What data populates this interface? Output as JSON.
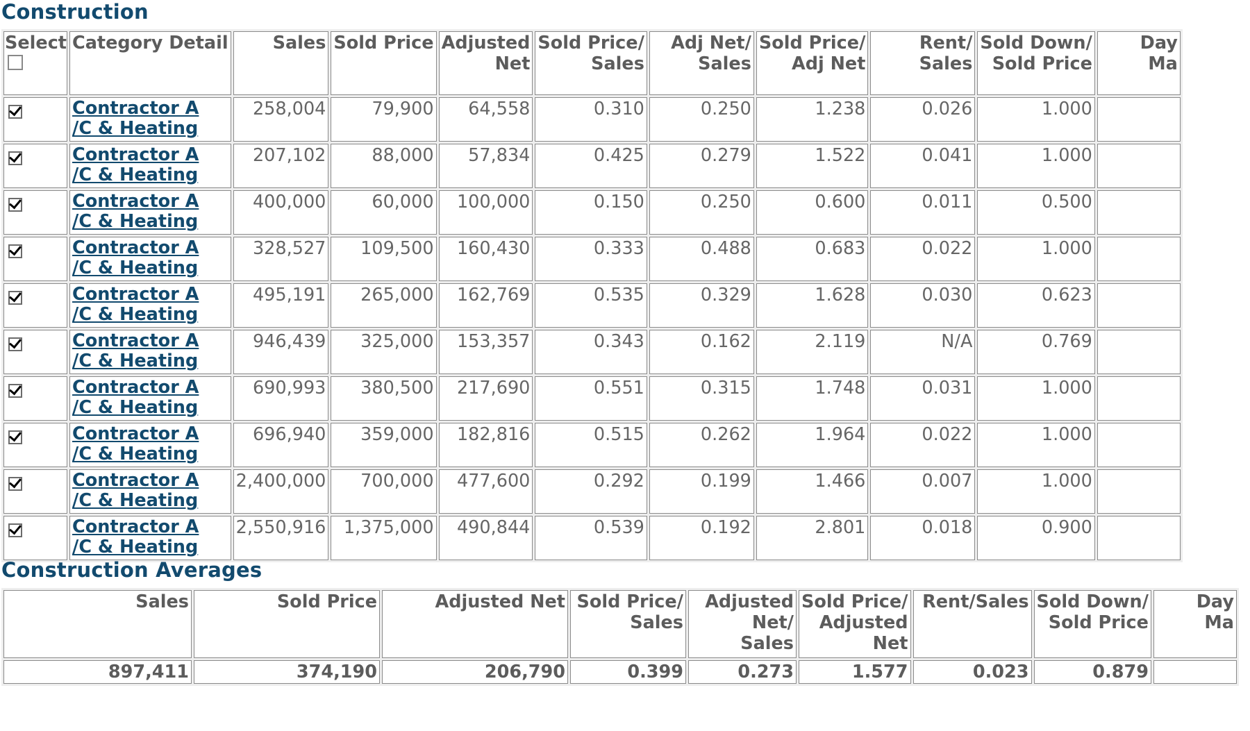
{
  "construction": {
    "title": "Construction",
    "headers": {
      "select": "Select",
      "category": "Category Detail",
      "sales": "Sales",
      "sold_price": "Sold Price",
      "adjusted_net": [
        "Adjusted",
        "Net"
      ],
      "sp_sales": [
        "Sold Price/",
        "Sales"
      ],
      "an_sales": [
        "Adj Net/",
        "Sales"
      ],
      "sp_an": [
        "Sold Price/",
        "Adj Net"
      ],
      "rent_sales": [
        "Rent/",
        "Sales"
      ],
      "sd_sp": [
        "Sold Down/",
        "Sold Price"
      ],
      "dom": [
        "Day",
        "Ma"
      ]
    },
    "rows": [
      {
        "checked": true,
        "cat1": "Contractor A",
        "cat2": "/C & Heating",
        "sales": "258,004",
        "sold_price": "79,900",
        "adjusted_net": "64,558",
        "sp_sales": "0.310",
        "an_sales": "0.250",
        "sp_an": "1.238",
        "rent_sales": "0.026",
        "sd_sp": "1.000"
      },
      {
        "checked": true,
        "cat1": "Contractor A",
        "cat2": "/C & Heating",
        "sales": "207,102",
        "sold_price": "88,000",
        "adjusted_net": "57,834",
        "sp_sales": "0.425",
        "an_sales": "0.279",
        "sp_an": "1.522",
        "rent_sales": "0.041",
        "sd_sp": "1.000"
      },
      {
        "checked": true,
        "cat1": "Contractor A",
        "cat2": "/C & Heating",
        "sales": "400,000",
        "sold_price": "60,000",
        "adjusted_net": "100,000",
        "sp_sales": "0.150",
        "an_sales": "0.250",
        "sp_an": "0.600",
        "rent_sales": "0.011",
        "sd_sp": "0.500"
      },
      {
        "checked": true,
        "cat1": "Contractor A",
        "cat2": "/C & Heating",
        "sales": "328,527",
        "sold_price": "109,500",
        "adjusted_net": "160,430",
        "sp_sales": "0.333",
        "an_sales": "0.488",
        "sp_an": "0.683",
        "rent_sales": "0.022",
        "sd_sp": "1.000"
      },
      {
        "checked": true,
        "cat1": "Contractor A",
        "cat2": "/C & Heating",
        "sales": "495,191",
        "sold_price": "265,000",
        "adjusted_net": "162,769",
        "sp_sales": "0.535",
        "an_sales": "0.329",
        "sp_an": "1.628",
        "rent_sales": "0.030",
        "sd_sp": "0.623"
      },
      {
        "checked": true,
        "cat1": "Contractor A",
        "cat2": "/C & Heating",
        "sales": "946,439",
        "sold_price": "325,000",
        "adjusted_net": "153,357",
        "sp_sales": "0.343",
        "an_sales": "0.162",
        "sp_an": "2.119",
        "rent_sales": "N/A",
        "sd_sp": "0.769"
      },
      {
        "checked": true,
        "cat1": "Contractor A",
        "cat2": "/C & Heating",
        "sales": "690,993",
        "sold_price": "380,500",
        "adjusted_net": "217,690",
        "sp_sales": "0.551",
        "an_sales": "0.315",
        "sp_an": "1.748",
        "rent_sales": "0.031",
        "sd_sp": "1.000"
      },
      {
        "checked": true,
        "cat1": "Contractor A",
        "cat2": "/C & Heating",
        "sales": "696,940",
        "sold_price": "359,000",
        "adjusted_net": "182,816",
        "sp_sales": "0.515",
        "an_sales": "0.262",
        "sp_an": "1.964",
        "rent_sales": "0.022",
        "sd_sp": "1.000"
      },
      {
        "checked": true,
        "cat1": "Contractor A",
        "cat2": "/C & Heating",
        "sales": "2,400,000",
        "sold_price": "700,000",
        "adjusted_net": "477,600",
        "sp_sales": "0.292",
        "an_sales": "0.199",
        "sp_an": "1.466",
        "rent_sales": "0.007",
        "sd_sp": "1.000"
      },
      {
        "checked": true,
        "cat1": "Contractor A",
        "cat2": "/C & Heating",
        "sales": "2,550,916",
        "sold_price": "1,375,000",
        "adjusted_net": "490,844",
        "sp_sales": "0.539",
        "an_sales": "0.192",
        "sp_an": "2.801",
        "rent_sales": "0.018",
        "sd_sp": "0.900"
      }
    ]
  },
  "averages": {
    "title": "Construction Averages",
    "headers": {
      "sales": "Sales",
      "sold_price": "Sold Price",
      "adjusted_net": "Adjusted Net",
      "sp_sales": [
        "Sold Price/",
        "Sales"
      ],
      "an_sales": [
        "Adjusted",
        "Net/",
        "Sales"
      ],
      "sp_an": [
        "Sold Price/",
        "Adjusted",
        "Net"
      ],
      "rent_sales": "Rent/Sales",
      "sd_sp": [
        "Sold Down/",
        "Sold Price"
      ],
      "dom": [
        "Day",
        "Ma"
      ]
    },
    "values": {
      "sales": "897,411",
      "sold_price": "374,190",
      "adjusted_net": "206,790",
      "sp_sales": "0.399",
      "an_sales": "0.273",
      "sp_an": "1.577",
      "rent_sales": "0.023",
      "sd_sp": "0.879"
    }
  }
}
